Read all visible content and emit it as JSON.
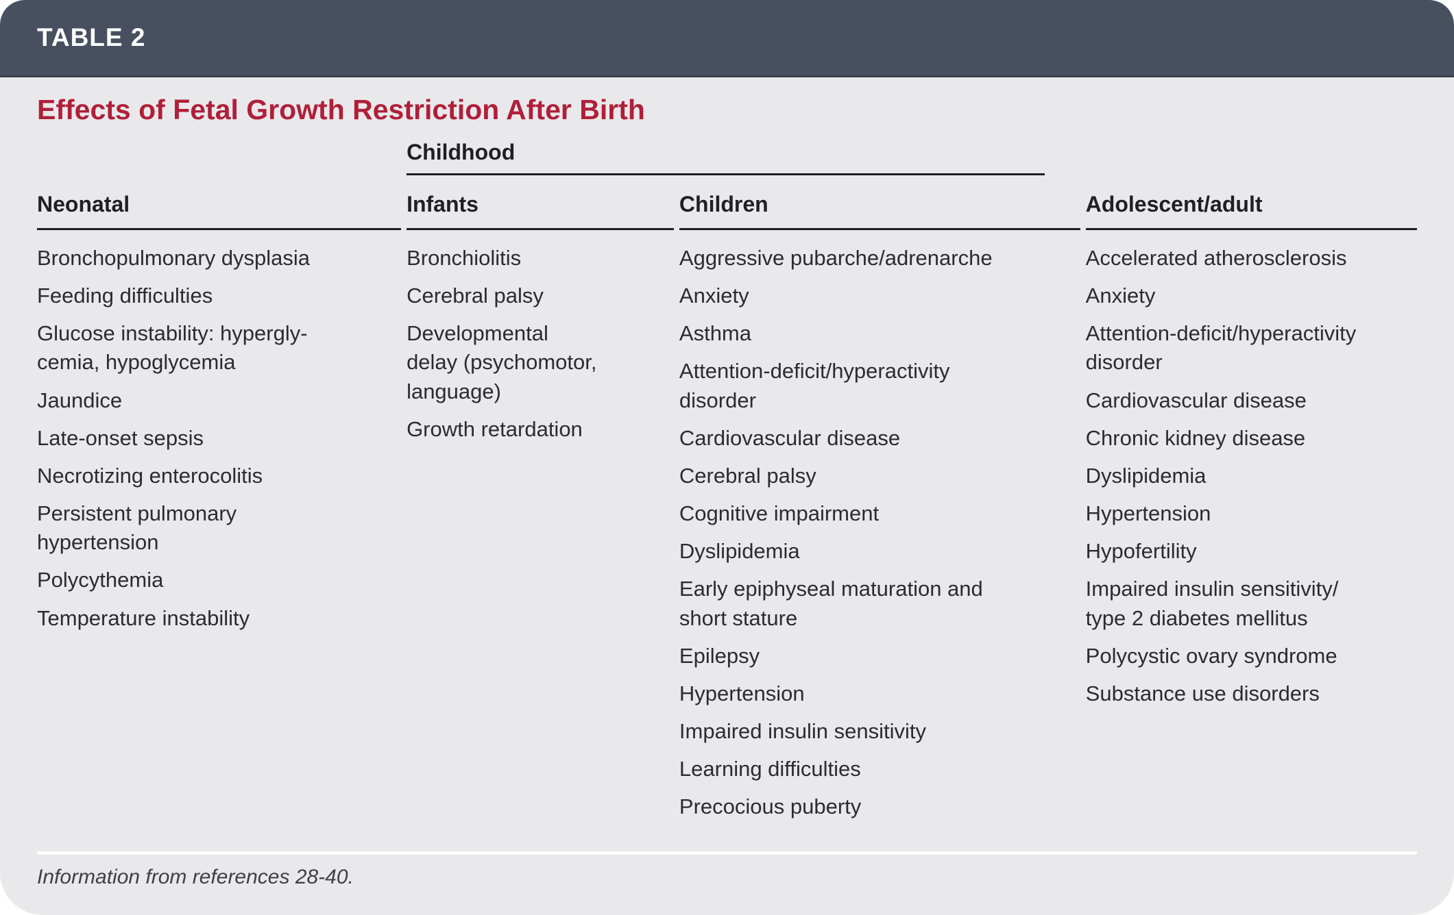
{
  "table_label": "TABLE 2",
  "title": "Effects of Fetal Growth Restriction After Birth",
  "group_header": "Childhood",
  "columns": [
    {
      "header": "Neonatal",
      "items": [
        "Bronchopulmonary dysplasia",
        "Feeding difficulties",
        "Glucose instability: hypergly-\ncemia, hypoglycemia",
        "Jaundice",
        "Late-onset sepsis",
        "Necrotizing enterocolitis",
        "Persistent pulmonary\nhypertension",
        "Polycythemia",
        "Temperature instability"
      ]
    },
    {
      "header": "Infants",
      "items": [
        "Bronchiolitis",
        "Cerebral palsy",
        "Developmental\ndelay (psychomotor,\nlanguage)",
        "Growth retardation"
      ]
    },
    {
      "header": "Children",
      "items": [
        "Aggressive pubarche/adrenarche",
        "Anxiety",
        "Asthma",
        "Attention-deficit/hyperactivity\ndisorder",
        "Cardiovascular disease",
        "Cerebral palsy",
        "Cognitive impairment",
        "Dyslipidemia",
        "Early epiphyseal maturation and\nshort stature",
        "Epilepsy",
        "Hypertension",
        "Impaired insulin sensitivity",
        "Learning difficulties",
        "Precocious puberty"
      ]
    },
    {
      "header": "Adolescent/adult",
      "items": [
        "Accelerated atherosclerosis",
        "Anxiety",
        "Attention-deficit/hyperactivity\ndisorder",
        "Cardiovascular disease",
        "Chronic kidney disease",
        "Dyslipidemia",
        "Hypertension",
        "Hypofertility",
        "Impaired insulin sensitivity/\ntype 2 diabetes mellitus",
        "Polycystic ovary syndrome",
        "Substance use disorders"
      ]
    }
  ],
  "footnote": "Information from references 28-40.",
  "colors": {
    "header_bar": "#485060",
    "title_red": "#b01f3a",
    "card_bg": "#e9e9eb",
    "rule": "#1f1f24",
    "body_text": "#2c2b31",
    "footnote_divider": "#ffffff"
  }
}
